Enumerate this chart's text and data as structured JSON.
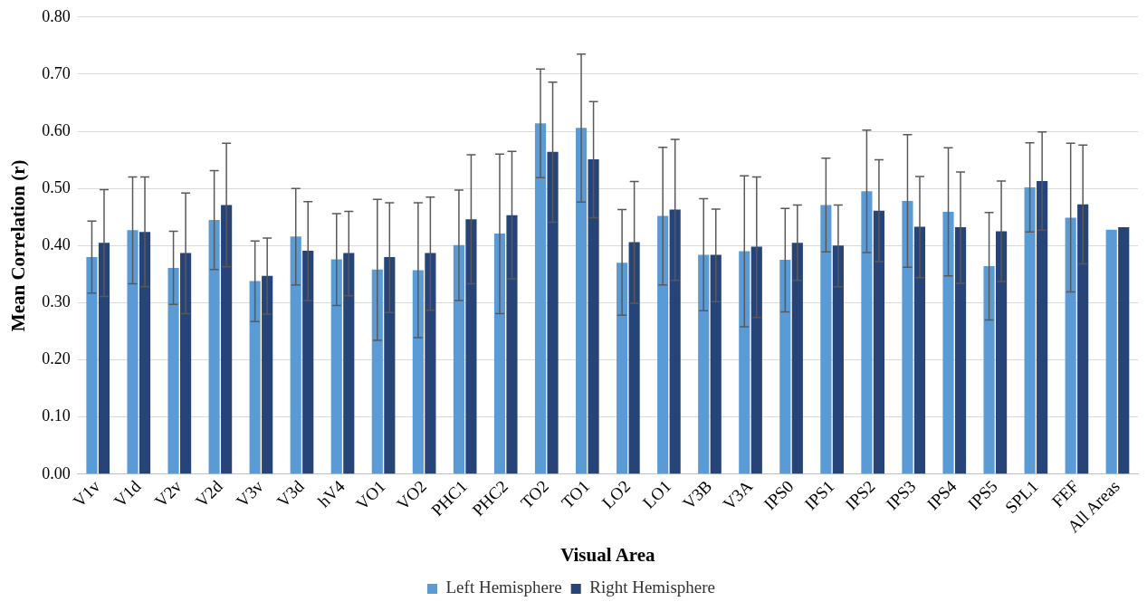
{
  "chart_data": {
    "type": "bar",
    "xlabel": "Visual Area",
    "ylabel": "Mean Correlation (r)",
    "categories": [
      "V1v",
      "V1d",
      "V2v",
      "V2d",
      "V3v",
      "V3d",
      "hV4",
      "VO1",
      "VO2",
      "PHC1",
      "PHC2",
      "TO2",
      "TO1",
      "LO2",
      "LO1",
      "V3B",
      "V3A",
      "IPS0",
      "IPS1",
      "IPS2",
      "IPS3",
      "IPS4",
      "IPS5",
      "SPL1",
      "FEF",
      "All Areas"
    ],
    "series": [
      {
        "name": "Left Hemisphere",
        "color": "#5b9bd5",
        "values": [
          0.38,
          0.427,
          0.361,
          0.445,
          0.338,
          0.416,
          0.376,
          0.358,
          0.357,
          0.401,
          0.421,
          0.614,
          0.606,
          0.37,
          0.452,
          0.384,
          0.39,
          0.375,
          0.471,
          0.495,
          0.478,
          0.459,
          0.364,
          0.502,
          0.449,
          0.428
        ],
        "errors": [
          [
            0.317,
            0.443
          ],
          [
            0.333,
            0.52
          ],
          [
            0.297,
            0.425
          ],
          [
            0.358,
            0.531
          ],
          [
            0.267,
            0.408
          ],
          [
            0.331,
            0.5
          ],
          [
            0.295,
            0.456
          ],
          [
            0.234,
            0.481
          ],
          [
            0.239,
            0.475
          ],
          [
            0.304,
            0.497
          ],
          [
            0.281,
            0.56
          ],
          [
            0.519,
            0.709
          ],
          [
            0.476,
            0.735
          ],
          [
            0.278,
            0.463
          ],
          [
            0.331,
            0.572
          ],
          [
            0.286,
            0.482
          ],
          [
            0.258,
            0.522
          ],
          [
            0.284,
            0.465
          ],
          [
            0.389,
            0.553
          ],
          [
            0.388,
            0.602
          ],
          [
            0.362,
            0.594
          ],
          [
            0.347,
            0.571
          ],
          [
            0.27,
            0.458
          ],
          [
            0.424,
            0.58
          ],
          [
            0.319,
            0.579
          ],
          null
        ]
      },
      {
        "name": "Right Hemisphere",
        "color": "#264478",
        "values": [
          0.405,
          0.424,
          0.387,
          0.471,
          0.347,
          0.391,
          0.387,
          0.38,
          0.387,
          0.446,
          0.453,
          0.564,
          0.551,
          0.406,
          0.463,
          0.384,
          0.398,
          0.405,
          0.4,
          0.461,
          0.433,
          0.432,
          0.425,
          0.513,
          0.472,
          0.432
        ],
        "errors": [
          [
            0.311,
            0.498
          ],
          [
            0.328,
            0.52
          ],
          [
            0.281,
            0.492
          ],
          [
            0.363,
            0.579
          ],
          [
            0.28,
            0.413
          ],
          [
            0.304,
            0.477
          ],
          [
            0.312,
            0.46
          ],
          [
            0.283,
            0.475
          ],
          [
            0.287,
            0.485
          ],
          [
            0.333,
            0.559
          ],
          [
            0.342,
            0.565
          ],
          [
            0.441,
            0.686
          ],
          [
            0.449,
            0.652
          ],
          [
            0.299,
            0.512
          ],
          [
            0.339,
            0.586
          ],
          [
            0.302,
            0.464
          ],
          [
            0.274,
            0.52
          ],
          [
            0.339,
            0.471
          ],
          [
            0.328,
            0.471
          ],
          [
            0.372,
            0.55
          ],
          [
            0.344,
            0.521
          ],
          [
            0.334,
            0.529
          ],
          [
            0.337,
            0.513
          ],
          [
            0.427,
            0.599
          ],
          [
            0.368,
            0.576
          ],
          null
        ]
      }
    ],
    "ylim": [
      0,
      0.8
    ],
    "yticks": [
      {
        "value": 0,
        "label": "0.00"
      },
      {
        "value": 0.1,
        "label": "0.10"
      },
      {
        "value": 0.2,
        "label": "0.20"
      },
      {
        "value": 0.3,
        "label": "0.30"
      },
      {
        "value": 0.4,
        "label": "0.40"
      },
      {
        "value": 0.5,
        "label": "0.50"
      },
      {
        "value": 0.6,
        "label": "0.60"
      },
      {
        "value": 0.7,
        "label": "0.70"
      },
      {
        "value": 0.8,
        "label": "0.80"
      }
    ],
    "grid": "y",
    "legend": "bottom"
  }
}
